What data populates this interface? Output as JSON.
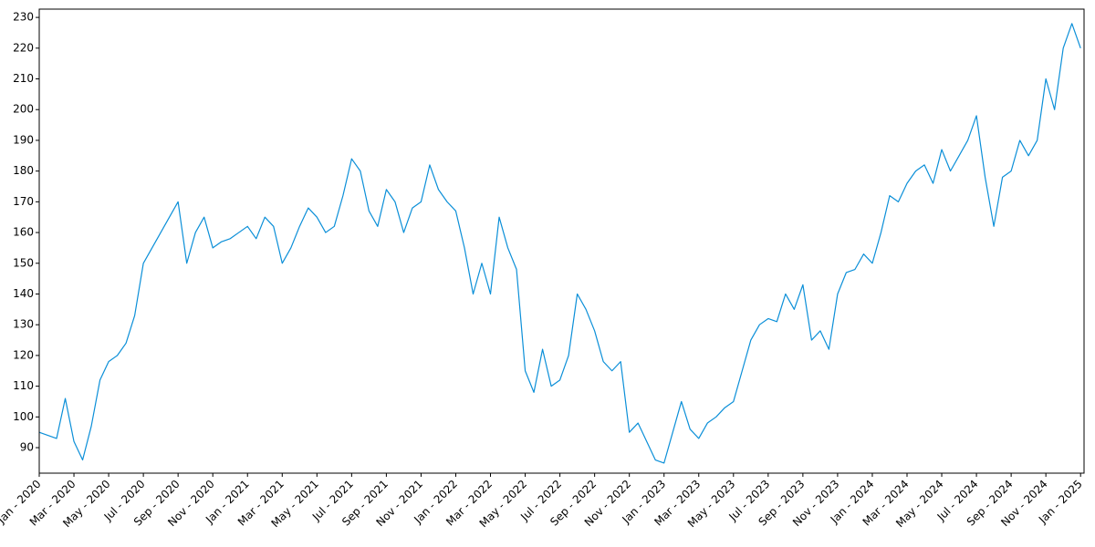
{
  "chart_data": {
    "type": "line",
    "color": "#0b8fd8",
    "x": [
      0,
      0.5,
      1,
      1.5,
      2,
      2.5,
      3,
      3.5,
      4,
      4.5,
      5,
      5.5,
      6,
      6.5,
      7,
      7.5,
      8,
      8.5,
      9,
      9.5,
      10,
      10.5,
      11,
      11.5,
      12,
      12.5,
      13,
      13.5,
      14,
      14.5,
      15,
      15.5,
      16,
      16.5,
      17,
      17.5,
      18,
      18.5,
      19,
      19.5,
      20,
      20.5,
      21,
      21.5,
      22,
      22.5,
      23,
      23.5,
      24,
      24.5,
      25,
      25.5,
      26,
      26.5,
      27,
      27.5,
      28,
      28.5,
      29,
      29.5,
      30,
      30.5,
      31,
      31.5,
      32,
      32.5,
      33,
      33.5,
      34,
      34.5,
      35,
      35.5,
      36,
      36.5,
      37,
      37.5,
      38,
      38.5,
      39,
      39.5,
      40,
      40.5,
      41,
      41.5,
      42,
      42.5,
      43,
      43.5,
      44,
      44.5,
      45,
      45.5,
      46,
      46.5,
      47,
      47.5,
      48,
      48.5,
      49,
      49.5,
      50,
      50.5,
      51,
      51.5,
      52,
      52.5,
      53,
      53.5,
      54,
      54.5,
      55,
      55.5,
      56,
      56.5,
      57,
      57.5,
      58,
      58.5,
      59,
      59.5,
      60
    ],
    "values": [
      95,
      94,
      93,
      106,
      92,
      86,
      97,
      112,
      118,
      120,
      124,
      133,
      150,
      155,
      160,
      165,
      170,
      150,
      160,
      165,
      155,
      157,
      158,
      160,
      162,
      158,
      165,
      162,
      150,
      155,
      162,
      168,
      165,
      160,
      162,
      172,
      184,
      180,
      167,
      162,
      174,
      170,
      160,
      168,
      170,
      182,
      174,
      170,
      167,
      155,
      140,
      150,
      140,
      165,
      155,
      148,
      115,
      108,
      122,
      110,
      112,
      120,
      140,
      135,
      128,
      118,
      115,
      118,
      95,
      98,
      92,
      86,
      85,
      95,
      105,
      96,
      93,
      98,
      100,
      103,
      105,
      115,
      125,
      130,
      132,
      131,
      140,
      135,
      143,
      125,
      128,
      122,
      140,
      147,
      148,
      153,
      150,
      160,
      172,
      170,
      176,
      180,
      182,
      176,
      187,
      180,
      185,
      190,
      198,
      178,
      162,
      178,
      180,
      190,
      185,
      190,
      210,
      200,
      220,
      228,
      220
    ],
    "xlim": [
      0,
      60.2
    ],
    "ylim": [
      81.7,
      232.7
    ],
    "yticks": [
      90,
      100,
      110,
      120,
      130,
      140,
      150,
      160,
      170,
      180,
      190,
      200,
      210,
      220,
      230
    ],
    "xticks": [
      {
        "value": 0,
        "label": "Jan - 2020"
      },
      {
        "value": 2,
        "label": "Mar - 2020"
      },
      {
        "value": 4,
        "label": "May - 2020"
      },
      {
        "value": 6,
        "label": "Jul - 2020"
      },
      {
        "value": 8,
        "label": "Sep - 2020"
      },
      {
        "value": 10,
        "label": "Nov - 2020"
      },
      {
        "value": 12,
        "label": "Jan - 2021"
      },
      {
        "value": 14,
        "label": "Mar - 2021"
      },
      {
        "value": 16,
        "label": "May - 2021"
      },
      {
        "value": 18,
        "label": "Jul - 2021"
      },
      {
        "value": 20,
        "label": "Sep - 2021"
      },
      {
        "value": 22,
        "label": "Nov - 2021"
      },
      {
        "value": 24,
        "label": "Jan - 2022"
      },
      {
        "value": 26,
        "label": "Mar - 2022"
      },
      {
        "value": 28,
        "label": "May - 2022"
      },
      {
        "value": 30,
        "label": "Jul - 2022"
      },
      {
        "value": 32,
        "label": "Sep - 2022"
      },
      {
        "value": 34,
        "label": "Nov - 2022"
      },
      {
        "value": 36,
        "label": "Jan - 2023"
      },
      {
        "value": 38,
        "label": "Mar - 2023"
      },
      {
        "value": 40,
        "label": "May - 2023"
      },
      {
        "value": 42,
        "label": "Jul - 2023"
      },
      {
        "value": 44,
        "label": "Sep - 2023"
      },
      {
        "value": 46,
        "label": "Nov - 2023"
      },
      {
        "value": 48,
        "label": "Jan - 2024"
      },
      {
        "value": 50,
        "label": "Mar - 2024"
      },
      {
        "value": 52,
        "label": "May - 2024"
      },
      {
        "value": 54,
        "label": "Jul - 2024"
      },
      {
        "value": 56,
        "label": "Sep - 2024"
      },
      {
        "value": 58,
        "label": "Nov - 2024"
      },
      {
        "value": 60,
        "label": "Jan - 2025"
      }
    ]
  }
}
